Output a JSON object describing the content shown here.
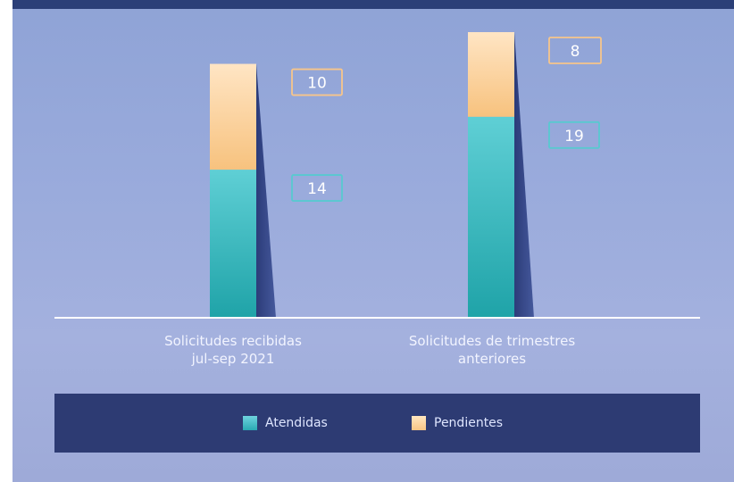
{
  "chart_data": {
    "type": "bar",
    "stacked": true,
    "categories": [
      "Solicitudes recibidas jul-sep 2021",
      "Solicitudes de trimestres anteriores"
    ],
    "category_lines": [
      [
        "Solicitudes recibidas",
        "jul-sep 2021"
      ],
      [
        "Solicitudes de trimestres",
        "anteriores"
      ]
    ],
    "series": [
      {
        "name": "Atendidas",
        "values": [
          14,
          19
        ],
        "color": "#2bb5b5",
        "label_color": "#58c9d0"
      },
      {
        "name": "Pendientes",
        "values": [
          10,
          8
        ],
        "color": "#f8c98a",
        "label_color": "#f7c58a"
      }
    ],
    "data_labels": [
      [
        "14",
        "19"
      ],
      [
        "10",
        "8"
      ]
    ],
    "ylim": [
      0,
      27
    ],
    "legend": {
      "position": "bottom",
      "items": [
        "Atendidas",
        "Pendientes"
      ]
    },
    "grid": false,
    "axis_line_color": "#ffffff"
  }
}
